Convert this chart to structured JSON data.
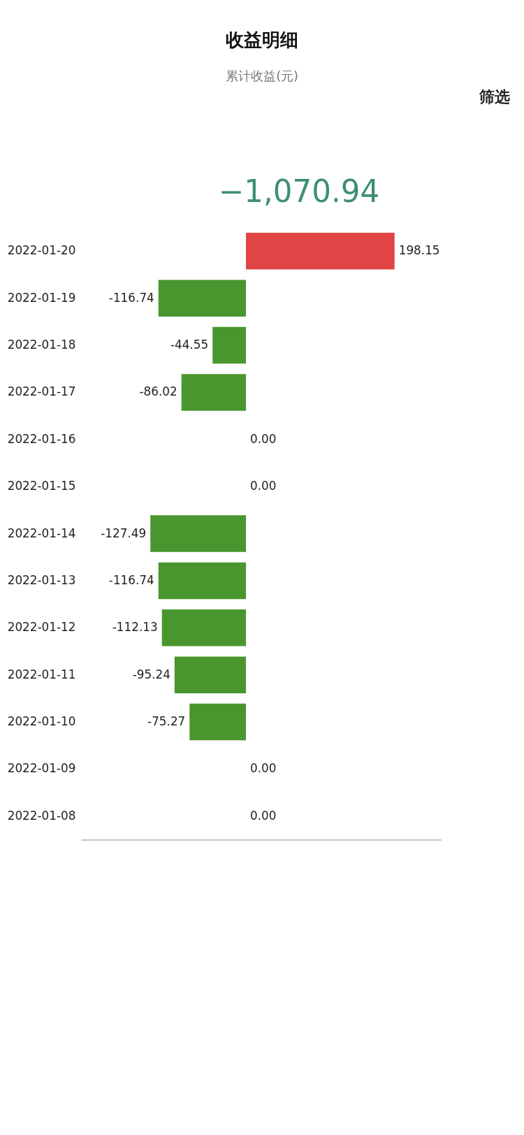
{
  "chart_data": {
    "type": "bar",
    "orientation": "horizontal",
    "title": "收益明细",
    "subtitle": "累计收益(元)",
    "annotations": [
      "−1,070.94",
      "筛选"
    ],
    "categories": [
      "2022-01-20",
      "2022-01-19",
      "2022-01-18",
      "2022-01-17",
      "2022-01-16",
      "2022-01-15",
      "2022-01-14",
      "2022-01-13",
      "2022-01-12",
      "2022-01-11",
      "2022-01-10",
      "2022-01-09",
      "2022-01-08"
    ],
    "values": [
      198.15,
      -116.74,
      -44.55,
      -86.02,
      0,
      0,
      -127.49,
      -116.74,
      -112.13,
      -95.24,
      -75.27,
      0,
      0
    ],
    "colors": [
      "#e04444",
      "#4a962e",
      "#4a962e",
      "#4a962e",
      "#a7a7b5",
      "#a7a7b5",
      "#4a962e",
      "#4a962e",
      "#4a962e",
      "#4a962e",
      "#4a962e",
      "#a7a7b5",
      "#a7a7b5"
    ],
    "value_labels": [
      "198.15",
      "-116.74",
      "-44.55",
      "-86.02",
      "0.00",
      "0.00",
      "-127.49",
      "-116.74",
      "-112.13",
      "-95.24",
      "-75.27",
      "0.00",
      "0.00"
    ],
    "xlim": [
      -220,
      260
    ],
    "tick_labels": "y",
    "grid": false
  }
}
